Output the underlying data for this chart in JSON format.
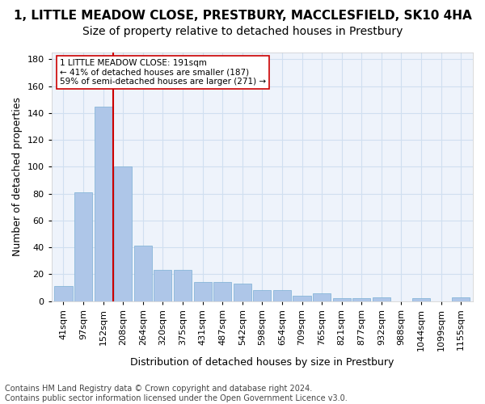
{
  "title": "1, LITTLE MEADOW CLOSE, PRESTBURY, MACCLESFIELD, SK10 4HA",
  "subtitle": "Size of property relative to detached houses in Prestbury",
  "xlabel": "Distribution of detached houses by size in Prestbury",
  "ylabel": "Number of detached properties",
  "bar_values": [
    11,
    81,
    145,
    100,
    41,
    23,
    23,
    14,
    14,
    13,
    8,
    8,
    4,
    6,
    2,
    2,
    3,
    0,
    2,
    0,
    3
  ],
  "categories": [
    "41sqm",
    "97sqm",
    "152sqm",
    "208sqm",
    "264sqm",
    "320sqm",
    "375sqm",
    "431sqm",
    "487sqm",
    "542sqm",
    "598sqm",
    "654sqm",
    "709sqm",
    "765sqm",
    "821sqm",
    "877sqm",
    "932sqm",
    "988sqm",
    "1044sqm",
    "1099sqm",
    "1155sqm"
  ],
  "bar_color": "#aec6e8",
  "bar_edge_color": "#7bafd4",
  "grid_color": "#d0dff0",
  "background_color": "#eef3fb",
  "vline_x": 2.5,
  "vline_color": "#cc0000",
  "annotation_text": "1 LITTLE MEADOW CLOSE: 191sqm\n← 41% of detached houses are smaller (187)\n59% of semi-detached houses are larger (271) →",
  "annotation_box_color": "#ffffff",
  "annotation_box_edge": "#cc0000",
  "ylim": [
    0,
    185
  ],
  "yticks": [
    0,
    20,
    40,
    60,
    80,
    100,
    120,
    140,
    160,
    180
  ],
  "footer_text": "Contains HM Land Registry data © Crown copyright and database right 2024.\nContains public sector information licensed under the Open Government Licence v3.0.",
  "title_fontsize": 11,
  "subtitle_fontsize": 10,
  "axis_label_fontsize": 9,
  "tick_fontsize": 8,
  "footer_fontsize": 7
}
